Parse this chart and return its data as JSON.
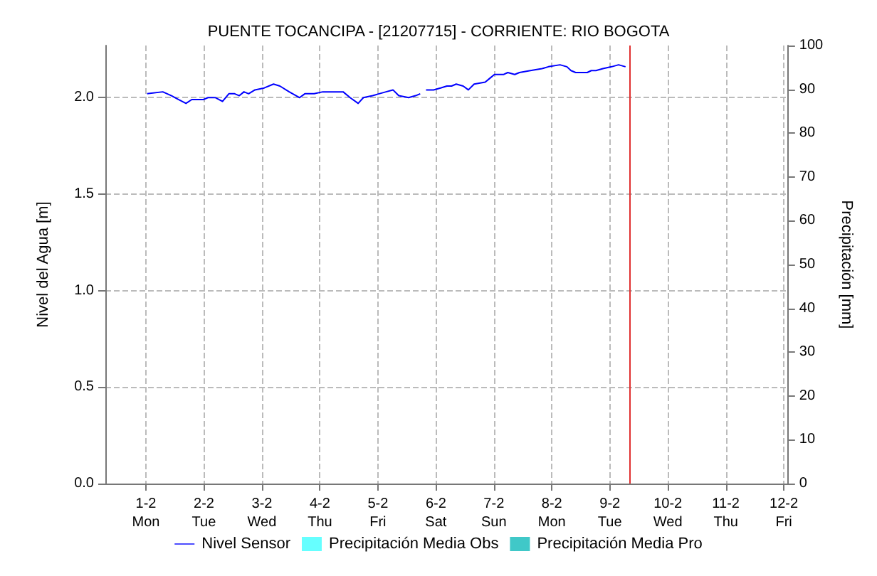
{
  "chart_data": {
    "type": "line",
    "title": "PUENTE TOCANCIPA - [21207715] - CORRIENTE: RIO BOGOTA",
    "ylabel": "Nivel del Agua [m]",
    "y2label": "Precipitación [mm]",
    "xlim": [
      "--01-31T07:12",
      "--02-12T01:41"
    ],
    "ylim": [
      0,
      2.27
    ],
    "y2lim": [
      0,
      100
    ],
    "xticks": [
      {
        "value": "--02-01",
        "label": "1-2\nMon"
      },
      {
        "value": "--02-02",
        "label": "2-2\nTue"
      },
      {
        "value": "--02-03",
        "label": "3-2\nWed"
      },
      {
        "value": "--02-04",
        "label": "4-2\nThu"
      },
      {
        "value": "--02-05",
        "label": "5-2\nFri"
      },
      {
        "value": "--02-06",
        "label": "6-2\nSat"
      },
      {
        "value": "--02-07",
        "label": "7-2\nSun"
      },
      {
        "value": "--02-08",
        "label": "8-2\nMon"
      },
      {
        "value": "--02-09",
        "label": "9-2\nTue"
      },
      {
        "value": "--02-10",
        "label": "10-2\nWed"
      },
      {
        "value": "--02-11",
        "label": "11-2\nThu"
      },
      {
        "value": "--02-12",
        "label": "12-2\nFri"
      }
    ],
    "yticks": [
      {
        "value": 0,
        "label": "0.0"
      },
      {
        "value": 0.5,
        "label": "0.5"
      },
      {
        "value": 1,
        "label": "1.0"
      },
      {
        "value": 1.5,
        "label": "1.5"
      },
      {
        "value": 2,
        "label": "2.0"
      }
    ],
    "y2ticks": [
      0,
      10,
      20,
      30,
      40,
      50,
      60,
      70,
      80,
      90,
      100
    ],
    "grid": true,
    "legend": "bottom",
    "marker": "none",
    "line_style": "solid",
    "ref_lines": [
      {
        "axis": "x",
        "value": "--02-09T08:24",
        "color": "#e03030"
      }
    ],
    "series": [
      {
        "name": "Nivel Sensor",
        "color": "#0000ff",
        "x": [
          "--02-01T00:29",
          "--02-01T06:58",
          "--02-01T10:34",
          "--02-01T13:26",
          "--02-01T16:34",
          "--02-01T18:58",
          "--02-01T23:46",
          "--02-02T01:41",
          "--02-02T04:48",
          "--02-02T07:41",
          "--02-02T10:19",
          "--02-02T12:43",
          "--02-02T14:38",
          "--02-02T16:34",
          "--02-02T18:29",
          "--02-02T21:07",
          "--02-03T00:58",
          "--02-03T04:48",
          "--02-03T07:26",
          "--02-03T11:17",
          "--02-03T15:36",
          "--02-03T17:46",
          "--02-03T21:36",
          "--02-04T01:12",
          "--02-04T03:07",
          "--02-04T06:58",
          "--02-04T09:36",
          "--02-04T12:29",
          "--02-04T15:50",
          "--02-04T18:00",
          "--02-04T21:50",
          "--02-05T00:29",
          "--02-05T03:22",
          "--02-05T06:14",
          "--02-05T08:38",
          "--02-05T12:43",
          "--02-05T15:36",
          "--02-05T17:31",
          "--02-05T18:43",
          "--02-05T19:55",
          "--02-05T23:02",
          "--02-06T01:55",
          "--02-06T04:34",
          "--02-06T06:29",
          "--02-06T08:24",
          "--02-06T11:17",
          "--02-06T13:26",
          "--02-06T15:50",
          "--02-06T20:24",
          "--02-06T22:19",
          "--02-07T00:14",
          "--02-07T04:05",
          "--02-07T05:46",
          "--02-07T08:38",
          "--02-07T10:34",
          "--02-07T15:07",
          "--02-07T19:55",
          "--02-07T22:34",
          "--02-08T03:22",
          "--02-08T06:14",
          "--02-08T07:55",
          "--02-08T09:50",
          "--02-08T14:38",
          "--02-08T16:19",
          "--02-08T18:14",
          "--02-08T21:07",
          "--02-09T00:43",
          "--02-09T03:36",
          "--02-09T06:29"
        ],
        "values": [
          2.02,
          2.03,
          2.01,
          1.99,
          1.97,
          1.99,
          1.99,
          2.0,
          2.0,
          1.98,
          2.02,
          2.02,
          2.01,
          2.03,
          2.02,
          2.04,
          2.05,
          2.07,
          2.06,
          2.03,
          2.0,
          2.02,
          2.02,
          2.03,
          2.03,
          2.03,
          2.03,
          2.0,
          1.97,
          2.0,
          2.01,
          2.02,
          2.03,
          2.04,
          2.01,
          2.0,
          2.01,
          2.02,
          null,
          2.04,
          2.04,
          2.05,
          2.06,
          2.06,
          2.07,
          2.06,
          2.04,
          2.07,
          2.08,
          2.1,
          2.12,
          2.12,
          2.13,
          2.12,
          2.13,
          2.14,
          2.15,
          2.16,
          2.17,
          2.16,
          2.14,
          2.13,
          2.13,
          2.14,
          2.14,
          2.15,
          2.16,
          2.17,
          2.16
        ]
      },
      {
        "name": "Precipitación Media Obs",
        "type": "bar",
        "color": "#66ffff"
      },
      {
        "name": "Precipitación Media Pro",
        "type": "bar",
        "color": "#40c8c8"
      }
    ]
  }
}
